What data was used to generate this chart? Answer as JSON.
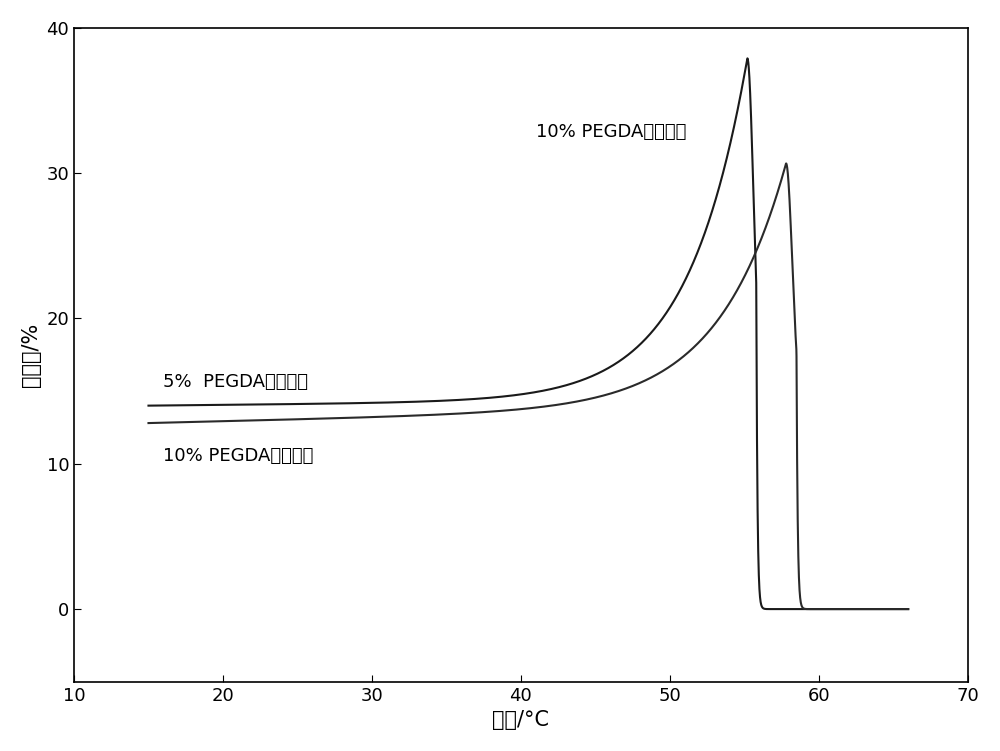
{
  "title": "",
  "xlabel": "温度/°C",
  "ylabel": "透射率/%",
  "xlim": [
    10,
    70
  ],
  "ylim": [
    -5,
    40
  ],
  "xticks": [
    10,
    20,
    30,
    40,
    50,
    60,
    70
  ],
  "yticks": [
    0,
    10,
    20,
    30,
    40
  ],
  "background_color": "#ffffff",
  "line_color": "#1a1a1a",
  "curve1_label": "10% PEGDA凝胶纤维",
  "curve2_label": "5%  PEGDA凝胶纤维",
  "curve3_label": "10% PEGDA凝胶纤维"
}
